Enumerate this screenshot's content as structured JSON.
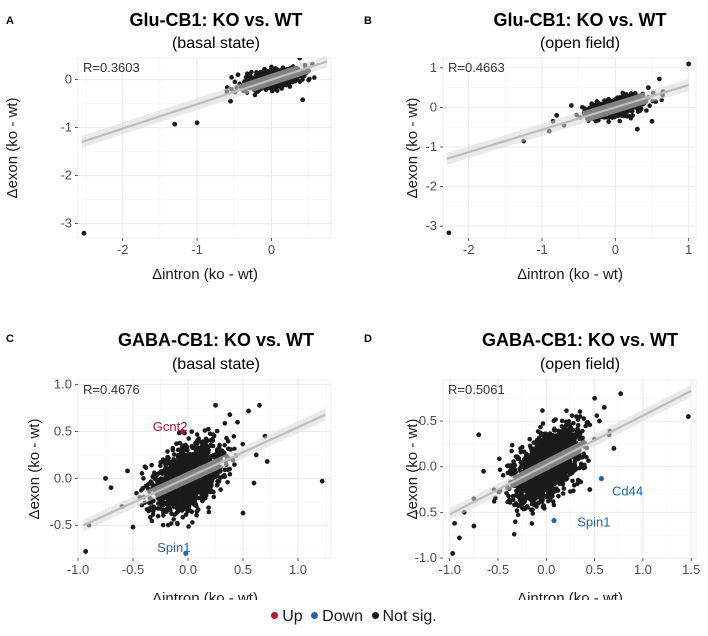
{
  "colors": {
    "up": "#b2182b",
    "down": "#2166ac",
    "notsig": "#1a1a1a",
    "fit": "#bdbdbd",
    "band": "#d9d9d9",
    "grid": "#ebebeb"
  },
  "legend": {
    "items": [
      {
        "label": "Up",
        "color": "#b2182b"
      },
      {
        "label": "Down",
        "color": "#2166ac"
      },
      {
        "label": "Not sig.",
        "color": "#1a1a1a"
      }
    ]
  },
  "chart_data": [
    {
      "panel": "A",
      "type": "scatter",
      "title": "Glu-CB1: KO vs. WT",
      "subtitle": "(basal state)",
      "xlabel": "Δintron (ko - wt)",
      "ylabel": "Δexon (ko - wt)",
      "annotation": "R=0.3603",
      "xlim": [
        -2.6,
        0.8
      ],
      "ylim": [
        -3.3,
        0.45
      ],
      "xticks": [
        -2,
        -1,
        0
      ],
      "yticks": [
        -3,
        -2,
        -1,
        0
      ],
      "fit": {
        "x": [
          -2.55,
          0.75
        ],
        "y": [
          -1.3,
          0.38
        ]
      },
      "cloud": {
        "cx": 0.0,
        "cy": 0.0,
        "sx": 0.17,
        "sy": 0.1,
        "r": 0.55,
        "n": 1100
      },
      "points": [
        [
          -2.52,
          -3.2
        ],
        [
          -1.3,
          -0.93
        ],
        [
          -1.0,
          -0.9
        ],
        [
          -0.55,
          -0.45
        ],
        [
          0.45,
          0.3
        ],
        [
          0.55,
          0.32
        ],
        [
          0.62,
          0.5
        ],
        [
          0.7,
          0.52
        ],
        [
          0.42,
          -0.42
        ],
        [
          -0.45,
          0.1
        ],
        [
          0.38,
          0.45
        ],
        [
          -0.6,
          -0.25
        ],
        [
          0.5,
          0.18
        ]
      ],
      "genes": []
    },
    {
      "panel": "B",
      "type": "scatter",
      "title": "Glu-CB1: KO vs. WT",
      "subtitle": "(open field)",
      "xlabel": "Δintron (ko - wt)",
      "ylabel": "Δexon (ko - wt)",
      "annotation": "R=0.4663",
      "xlim": [
        -2.35,
        1.1
      ],
      "ylim": [
        -3.3,
        1.25
      ],
      "xticks": [
        -2,
        -1,
        0,
        1
      ],
      "yticks": [
        -3,
        -2,
        -1,
        0,
        1
      ],
      "fit": {
        "x": [
          -2.3,
          1.0
        ],
        "y": [
          -1.3,
          0.57
        ]
      },
      "cloud": {
        "cx": 0.0,
        "cy": 0.0,
        "sx": 0.17,
        "sy": 0.12,
        "r": 0.55,
        "n": 1100
      },
      "points": [
        [
          -2.27,
          -3.17
        ],
        [
          1.0,
          1.1
        ],
        [
          -1.25,
          -0.85
        ],
        [
          -0.9,
          -0.6
        ],
        [
          -0.8,
          -0.2
        ],
        [
          0.6,
          0.72
        ],
        [
          0.65,
          0.4
        ],
        [
          0.5,
          -0.35
        ],
        [
          -0.7,
          -0.45
        ],
        [
          0.45,
          0.5
        ],
        [
          -0.6,
          0.05
        ],
        [
          0.3,
          -0.55
        ],
        [
          -0.85,
          -0.35
        ],
        [
          0.55,
          0.15
        ]
      ],
      "genes": []
    },
    {
      "panel": "C",
      "type": "scatter",
      "title": "GABA-CB1: KO vs. WT",
      "subtitle": "(basal state)",
      "xlabel": "Δintron (ko - wt)",
      "ylabel": "Δexon (ko - wt)",
      "annotation": "R=0.4676",
      "xlim": [
        -1.0,
        1.3
      ],
      "ylim": [
        -0.85,
        1.05
      ],
      "xticks": [
        -1.0,
        -0.5,
        0.0,
        0.5,
        1.0
      ],
      "yticks": [
        -0.5,
        0.0,
        0.5,
        1.0
      ],
      "fit": {
        "x": [
          -0.95,
          1.25
        ],
        "y": [
          -0.5,
          0.68
        ]
      },
      "cloud": {
        "cx": 0.0,
        "cy": 0.0,
        "sx": 0.15,
        "sy": 0.17,
        "r": 0.45,
        "n": 1700
      },
      "points": [
        [
          -0.93,
          -0.78
        ],
        [
          -0.9,
          -0.5
        ],
        [
          1.22,
          -0.03
        ],
        [
          0.72,
          0.18
        ],
        [
          0.65,
          0.78
        ],
        [
          0.55,
          0.72
        ],
        [
          0.5,
          -0.37
        ],
        [
          -0.75,
          0.0
        ],
        [
          -0.7,
          -0.1
        ],
        [
          -0.55,
          0.08
        ],
        [
          0.62,
          0.25
        ],
        [
          0.45,
          0.6
        ],
        [
          -0.6,
          -0.3
        ],
        [
          0.6,
          -0.05
        ],
        [
          0.38,
          0.68
        ],
        [
          0.25,
          0.78
        ],
        [
          -0.5,
          -0.52
        ],
        [
          0.7,
          0.45
        ]
      ],
      "genes": [
        {
          "label": "Gcnt2",
          "x": -0.05,
          "y": 0.5,
          "status": "up",
          "labelx": -0.32,
          "labely": 0.56
        },
        {
          "label": "Spin1",
          "x": -0.02,
          "y": -0.8,
          "status": "down",
          "labelx": -0.28,
          "labely": -0.73
        }
      ]
    },
    {
      "panel": "D",
      "type": "scatter",
      "title": "GABA-CB1: KO vs. WT",
      "subtitle": "(open field)",
      "xlabel": "Δintron (ko - wt)",
      "ylabel": "Δexon (ko - wt)",
      "annotation": "R=0.5061",
      "xlim": [
        -1.07,
        1.55
      ],
      "ylim": [
        -1.0,
        0.95
      ],
      "xticks": [
        -1.0,
        -0.5,
        0.0,
        0.5,
        1.0,
        1.5
      ],
      "yticks": [
        -1.0,
        -0.5,
        0.0,
        0.5
      ],
      "fit": {
        "x": [
          -1.0,
          1.5
        ],
        "y": [
          -0.52,
          0.83
        ]
      },
      "cloud": {
        "cx": 0.0,
        "cy": 0.0,
        "sx": 0.17,
        "sy": 0.2,
        "r": 0.5,
        "n": 1700
      },
      "points": [
        [
          1.47,
          0.55
        ],
        [
          0.77,
          0.8
        ],
        [
          -0.97,
          -0.95
        ],
        [
          -0.9,
          -0.78
        ],
        [
          -0.85,
          -0.5
        ],
        [
          -0.75,
          -0.65
        ],
        [
          0.6,
          0.65
        ],
        [
          0.5,
          0.75
        ],
        [
          0.65,
          0.35
        ],
        [
          0.45,
          -0.25
        ],
        [
          -0.7,
          0.35
        ],
        [
          -0.65,
          -0.05
        ],
        [
          0.55,
          0.5
        ],
        [
          -0.75,
          -0.35
        ],
        [
          -0.95,
          -0.62
        ],
        [
          0.7,
          0.2
        ],
        [
          0.35,
          0.55
        ]
      ],
      "genes": [
        {
          "label": "Cd44",
          "x": 0.57,
          "y": -0.13,
          "status": "down",
          "labelx": 0.68,
          "labely": -0.26
        },
        {
          "label": "Spin1",
          "x": 0.08,
          "y": -0.59,
          "status": "down",
          "labelx": 0.32,
          "labely": -0.6
        }
      ]
    }
  ]
}
